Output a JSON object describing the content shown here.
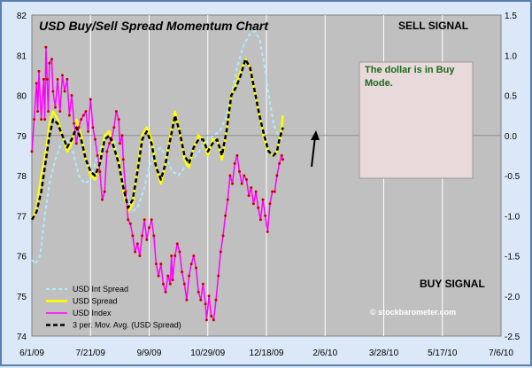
{
  "chart_data": {
    "type": "line",
    "title": "USD Buy/Sell Spread Momentum Chart",
    "x_ticks": [
      "6/1/09",
      "7/21/09",
      "9/9/09",
      "10/29/09",
      "12/18/09",
      "2/6/10",
      "3/28/10",
      "5/17/10",
      "7/6/10"
    ],
    "left_axis": {
      "range": [
        74,
        82
      ],
      "ticks": [
        "74",
        "75",
        "76",
        "77",
        "78",
        "79",
        "80",
        "81",
        "82"
      ]
    },
    "right_axis": {
      "range": [
        -2.5,
        1.5
      ],
      "ticks": [
        "1.5",
        "1.0",
        "0.5",
        "0.0",
        "-0.5",
        "-1.0",
        "-1.5",
        "-2.0",
        "-2.5"
      ]
    },
    "sell_signal_label": "SELL SIGNAL",
    "buy_signal_label": "BUY SIGNAL",
    "annotation": "The dollar is in Buy Mode.",
    "watermark": "© stockbarometer.com",
    "legend": [
      "USD Int Spread",
      "USD Spread",
      "USD Index",
      "3 per. Mov. Avg. (USD Spread)"
    ],
    "colors": {
      "int_spread": "#aaeeff",
      "spread": "#ffff00",
      "index": "#ff00ff",
      "mov_avg": "#000000",
      "plot_bg": "#c0c0c0",
      "note_box": "#e8dada"
    },
    "series": [
      {
        "name": "USD Int Spread",
        "axis": "right",
        "points": [
          [
            0,
            -1.55
          ],
          [
            3,
            -1.6
          ],
          [
            7,
            -1.5
          ],
          [
            11,
            -1.0
          ],
          [
            15,
            -0.6
          ],
          [
            20,
            -0.3
          ],
          [
            25,
            -0.1
          ],
          [
            30,
            -0.05
          ],
          [
            35,
            -0.2
          ],
          [
            40,
            -0.5
          ],
          [
            45,
            -0.6
          ],
          [
            50,
            -0.55
          ],
          [
            55,
            -0.3
          ],
          [
            60,
            -0.1
          ],
          [
            65,
            0.05
          ],
          [
            70,
            -0.05
          ],
          [
            75,
            -0.4
          ],
          [
            80,
            -0.7
          ],
          [
            85,
            -0.95
          ],
          [
            90,
            -0.9
          ],
          [
            95,
            -0.7
          ],
          [
            100,
            -0.4
          ],
          [
            105,
            -0.2
          ],
          [
            110,
            -0.15
          ],
          [
            115,
            -0.3
          ],
          [
            120,
            -0.45
          ],
          [
            125,
            -0.5
          ],
          [
            130,
            -0.4
          ],
          [
            135,
            -0.3
          ],
          [
            140,
            -0.25
          ],
          [
            145,
            -0.15
          ],
          [
            150,
            -0.05
          ],
          [
            155,
            0.0
          ],
          [
            160,
            0.05
          ],
          [
            165,
            0.2
          ],
          [
            170,
            0.5
          ],
          [
            175,
            0.85
          ],
          [
            180,
            1.1
          ],
          [
            185,
            1.25
          ],
          [
            190,
            1.3
          ],
          [
            194,
            1.2
          ],
          [
            198,
            0.9
          ],
          [
            202,
            0.5
          ],
          [
            206,
            0.15
          ],
          [
            210,
            0.0
          ],
          [
            214,
            -0.05
          ]
        ]
      },
      {
        "name": "USD Spread",
        "axis": "right",
        "points": [
          [
            0,
            -1.05
          ],
          [
            4,
            -0.9
          ],
          [
            8,
            -0.5
          ],
          [
            12,
            -0.2
          ],
          [
            15,
            0.15
          ],
          [
            18,
            0.3
          ],
          [
            22,
            0.2
          ],
          [
            26,
            0.0
          ],
          [
            30,
            -0.2
          ],
          [
            34,
            -0.1
          ],
          [
            38,
            0.2
          ],
          [
            42,
            0.0
          ],
          [
            46,
            -0.3
          ],
          [
            50,
            -0.5
          ],
          [
            54,
            -0.55
          ],
          [
            58,
            -0.3
          ],
          [
            62,
            0.0
          ],
          [
            66,
            0.05
          ],
          [
            70,
            -0.15
          ],
          [
            74,
            -0.3
          ],
          [
            78,
            -0.7
          ],
          [
            82,
            -0.95
          ],
          [
            86,
            -0.85
          ],
          [
            90,
            -0.4
          ],
          [
            94,
            0.0
          ],
          [
            98,
            0.1
          ],
          [
            102,
            -0.05
          ],
          [
            106,
            -0.4
          ],
          [
            110,
            -0.6
          ],
          [
            114,
            -0.35
          ],
          [
            118,
            0.0
          ],
          [
            122,
            0.3
          ],
          [
            126,
            0.05
          ],
          [
            130,
            -0.3
          ],
          [
            134,
            -0.4
          ],
          [
            138,
            -0.15
          ],
          [
            142,
            0.0
          ],
          [
            146,
            -0.05
          ],
          [
            150,
            -0.25
          ],
          [
            154,
            -0.05
          ],
          [
            158,
            -0.05
          ],
          [
            162,
            -0.3
          ],
          [
            166,
            0.05
          ],
          [
            170,
            0.5
          ],
          [
            174,
            0.65
          ],
          [
            178,
            0.8
          ],
          [
            182,
            0.95
          ],
          [
            186,
            0.85
          ],
          [
            190,
            0.55
          ],
          [
            194,
            0.25
          ],
          [
            198,
            -0.05
          ],
          [
            202,
            -0.2
          ],
          [
            206,
            -0.25
          ],
          [
            209,
            -0.2
          ],
          [
            211,
            -0.05
          ],
          [
            213,
            0.1
          ],
          [
            214,
            0.25
          ]
        ]
      },
      {
        "name": "USD Index",
        "axis": "left",
        "points": [
          [
            0,
            78.6
          ],
          [
            2,
            79.4
          ],
          [
            4,
            80.3
          ],
          [
            5,
            79.6
          ],
          [
            6,
            80.6
          ],
          [
            8,
            79.4
          ],
          [
            10,
            80.4
          ],
          [
            11,
            79.4
          ],
          [
            12,
            81.2
          ],
          [
            13,
            80.4
          ],
          [
            14,
            79.6
          ],
          [
            15,
            80.8
          ],
          [
            17,
            80.9
          ],
          [
            18,
            80.1
          ],
          [
            20,
            79.7
          ],
          [
            22,
            80.4
          ],
          [
            24,
            79.6
          ],
          [
            26,
            80.5
          ],
          [
            28,
            80.1
          ],
          [
            30,
            80.4
          ],
          [
            32,
            79.5
          ],
          [
            34,
            80.0
          ],
          [
            36,
            79.3
          ],
          [
            38,
            78.8
          ],
          [
            40,
            79.2
          ],
          [
            42,
            79.4
          ],
          [
            44,
            79.5
          ],
          [
            46,
            79.6
          ],
          [
            48,
            79.1
          ],
          [
            50,
            79.9
          ],
          [
            52,
            79.2
          ],
          [
            54,
            78.9
          ],
          [
            56,
            78.5
          ],
          [
            58,
            78.1
          ],
          [
            60,
            77.4
          ],
          [
            62,
            77.6
          ],
          [
            64,
            78.6
          ],
          [
            66,
            78.8
          ],
          [
            68,
            78.9
          ],
          [
            70,
            79.2
          ],
          [
            72,
            79.6
          ],
          [
            74,
            79.4
          ],
          [
            75,
            78.8
          ],
          [
            77,
            79.0
          ],
          [
            78,
            78.4
          ],
          [
            80,
            77.6
          ],
          [
            82,
            76.9
          ],
          [
            84,
            76.8
          ],
          [
            86,
            76.5
          ],
          [
            88,
            76.1
          ],
          [
            90,
            76.3
          ],
          [
            92,
            76.0
          ],
          [
            94,
            76.5
          ],
          [
            96,
            76.9
          ],
          [
            98,
            76.4
          ],
          [
            100,
            76.7
          ],
          [
            102,
            76.9
          ],
          [
            104,
            76.5
          ],
          [
            106,
            75.8
          ],
          [
            108,
            75.5
          ],
          [
            110,
            75.8
          ],
          [
            112,
            75.3
          ],
          [
            114,
            75.1
          ],
          [
            116,
            75.5
          ],
          [
            118,
            75.3
          ],
          [
            119,
            76.0
          ],
          [
            120,
            75.4
          ],
          [
            122,
            76.0
          ],
          [
            124,
            76.3
          ],
          [
            126,
            76.1
          ],
          [
            128,
            75.6
          ],
          [
            130,
            75.3
          ],
          [
            132,
            74.9
          ],
          [
            134,
            75.5
          ],
          [
            136,
            75.8
          ],
          [
            138,
            76.0
          ],
          [
            140,
            75.7
          ],
          [
            142,
            75.1
          ],
          [
            144,
            74.9
          ],
          [
            146,
            75.3
          ],
          [
            148,
            74.8
          ],
          [
            149,
            74.4
          ],
          [
            151,
            75.0
          ],
          [
            153,
            74.5
          ],
          [
            155,
            74.4
          ],
          [
            157,
            74.9
          ],
          [
            159,
            75.5
          ],
          [
            161,
            76.1
          ],
          [
            163,
            76.5
          ],
          [
            165,
            77.0
          ],
          [
            167,
            77.4
          ],
          [
            169,
            78.0
          ],
          [
            171,
            77.8
          ],
          [
            173,
            78.3
          ],
          [
            175,
            78.5
          ],
          [
            177,
            78.1
          ],
          [
            179,
            77.8
          ],
          [
            181,
            78.0
          ],
          [
            183,
            77.9
          ],
          [
            185,
            77.5
          ],
          [
            187,
            77.7
          ],
          [
            189,
            77.3
          ],
          [
            191,
            77.6
          ],
          [
            193,
            77.2
          ],
          [
            195,
            76.9
          ],
          [
            197,
            77.4
          ],
          [
            199,
            77.0
          ],
          [
            201,
            76.6
          ],
          [
            203,
            77.3
          ],
          [
            205,
            77.6
          ],
          [
            207,
            77.6
          ],
          [
            209,
            78.0
          ],
          [
            211,
            78.3
          ],
          [
            213,
            78.5
          ],
          [
            214,
            78.4
          ]
        ]
      },
      {
        "name": "3 per. Mov. Avg. (USD Spread)",
        "axis": "right",
        "points": [
          [
            0,
            -1.05
          ],
          [
            4,
            -0.95
          ],
          [
            8,
            -0.7
          ],
          [
            12,
            -0.3
          ],
          [
            15,
            0.0
          ],
          [
            18,
            0.2
          ],
          [
            22,
            0.15
          ],
          [
            26,
            0.0
          ],
          [
            30,
            -0.15
          ],
          [
            34,
            -0.05
          ],
          [
            38,
            0.1
          ],
          [
            42,
            -0.05
          ],
          [
            46,
            -0.3
          ],
          [
            50,
            -0.45
          ],
          [
            54,
            -0.5
          ],
          [
            58,
            -0.35
          ],
          [
            62,
            -0.05
          ],
          [
            66,
            0.0
          ],
          [
            70,
            -0.15
          ],
          [
            74,
            -0.35
          ],
          [
            78,
            -0.65
          ],
          [
            82,
            -0.9
          ],
          [
            86,
            -0.8
          ],
          [
            90,
            -0.45
          ],
          [
            94,
            -0.05
          ],
          [
            98,
            0.05
          ],
          [
            102,
            -0.1
          ],
          [
            106,
            -0.4
          ],
          [
            110,
            -0.55
          ],
          [
            114,
            -0.35
          ],
          [
            118,
            -0.05
          ],
          [
            122,
            0.25
          ],
          [
            126,
            0.05
          ],
          [
            130,
            -0.25
          ],
          [
            134,
            -0.35
          ],
          [
            138,
            -0.15
          ],
          [
            142,
            -0.05
          ],
          [
            146,
            -0.05
          ],
          [
            150,
            -0.2
          ],
          [
            154,
            -0.1
          ],
          [
            158,
            -0.05
          ],
          [
            162,
            -0.25
          ],
          [
            166,
            0.05
          ],
          [
            170,
            0.5
          ],
          [
            174,
            0.6
          ],
          [
            178,
            0.75
          ],
          [
            182,
            0.95
          ],
          [
            186,
            0.85
          ],
          [
            190,
            0.55
          ],
          [
            194,
            0.25
          ],
          [
            198,
            0.0
          ],
          [
            202,
            -0.2
          ],
          [
            206,
            -0.25
          ],
          [
            209,
            -0.2
          ],
          [
            211,
            -0.05
          ],
          [
            213,
            0.05
          ],
          [
            214,
            0.1
          ]
        ]
      }
    ]
  }
}
